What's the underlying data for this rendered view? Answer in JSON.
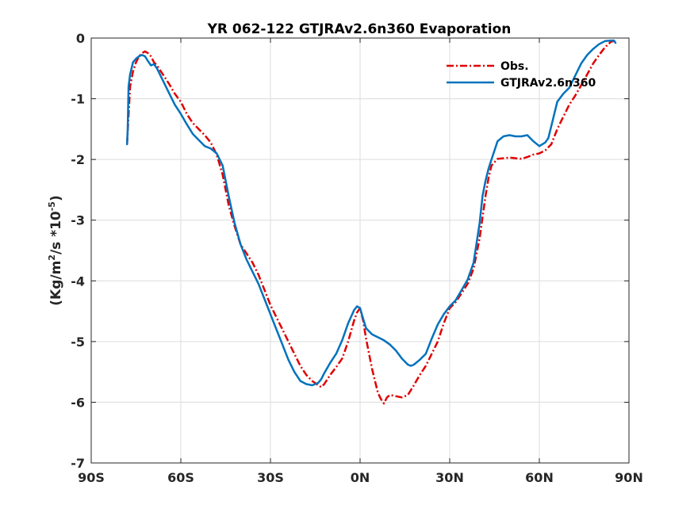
{
  "chart_data": {
    "type": "line",
    "title": "YR 062-122 GTJRAv2.6n360 Evaporation",
    "ylabel": {
      "base": "(Kg/m",
      "sup1": "2",
      "mid": "/s *10",
      "sup2": "-5",
      "end": ")"
    },
    "xlim": [
      -90,
      90
    ],
    "ylim": [
      -7,
      0
    ],
    "xticks": [
      {
        "value": -90,
        "label": "90S"
      },
      {
        "value": -60,
        "label": "60S"
      },
      {
        "value": -30,
        "label": "30S"
      },
      {
        "value": 0,
        "label": "0N"
      },
      {
        "value": 30,
        "label": "30N"
      },
      {
        "value": 60,
        "label": "60N"
      },
      {
        "value": 90,
        "label": "90N"
      }
    ],
    "yticks": [
      {
        "value": 0,
        "label": "0"
      },
      {
        "value": -1,
        "label": "-1"
      },
      {
        "value": -2,
        "label": "-2"
      },
      {
        "value": -3,
        "label": "-3"
      },
      {
        "value": -4,
        "label": "-4"
      },
      {
        "value": -5,
        "label": "-5"
      },
      {
        "value": -6,
        "label": "-6"
      },
      {
        "value": -7,
        "label": "-7"
      }
    ],
    "grid": true,
    "legend_position": "top-right",
    "series": [
      {
        "name": "Obs.",
        "color": "#e00000",
        "dash": "dash-dot",
        "x": [
          -78,
          -77,
          -76,
          -75,
          -74,
          -73,
          -72,
          -71,
          -70,
          -69,
          -68,
          -66,
          -64,
          -62,
          -60,
          -58,
          -56,
          -54,
          -52,
          -50,
          -48,
          -46,
          -44,
          -42,
          -40,
          -38,
          -36,
          -34,
          -32,
          -30,
          -28,
          -26,
          -24,
          -22,
          -20,
          -18,
          -16,
          -14,
          -13,
          -12,
          -10,
          -8,
          -6,
          -4,
          -2,
          -1,
          0,
          1,
          2,
          3,
          4,
          5,
          6,
          7,
          8,
          9,
          10,
          12,
          14,
          16,
          18,
          20,
          22,
          24,
          26,
          28,
          30,
          32,
          34,
          36,
          38,
          40,
          41,
          42,
          43,
          44,
          46,
          48,
          50,
          52,
          54,
          56,
          58,
          60,
          62,
          64,
          66,
          68,
          70,
          72,
          74,
          76,
          78,
          80,
          82,
          84,
          85
        ],
        "y": [
          -1.75,
          -0.8,
          -0.55,
          -0.4,
          -0.3,
          -0.25,
          -0.22,
          -0.25,
          -0.3,
          -0.4,
          -0.45,
          -0.6,
          -0.75,
          -0.92,
          -1.05,
          -1.25,
          -1.4,
          -1.5,
          -1.6,
          -1.72,
          -1.92,
          -2.25,
          -2.75,
          -3.1,
          -3.4,
          -3.55,
          -3.7,
          -3.9,
          -4.15,
          -4.4,
          -4.6,
          -4.8,
          -5.0,
          -5.2,
          -5.4,
          -5.55,
          -5.65,
          -5.72,
          -5.75,
          -5.7,
          -5.55,
          -5.42,
          -5.28,
          -5.0,
          -4.65,
          -4.52,
          -4.45,
          -4.65,
          -4.95,
          -5.2,
          -5.45,
          -5.65,
          -5.85,
          -5.95,
          -6.02,
          -5.92,
          -5.88,
          -5.9,
          -5.92,
          -5.88,
          -5.72,
          -5.55,
          -5.4,
          -5.2,
          -5.0,
          -4.7,
          -4.45,
          -4.35,
          -4.2,
          -4.05,
          -3.8,
          -3.3,
          -2.95,
          -2.6,
          -2.3,
          -2.1,
          -1.99,
          -1.98,
          -1.97,
          -1.98,
          -1.99,
          -1.96,
          -1.92,
          -1.9,
          -1.85,
          -1.75,
          -1.5,
          -1.3,
          -1.1,
          -0.95,
          -0.78,
          -0.6,
          -0.42,
          -0.28,
          -0.15,
          -0.06,
          -0.05
        ]
      },
      {
        "name": "GTJRAv2.6n360",
        "color": "#0072bd",
        "dash": "solid",
        "x": [
          -78,
          -77.8,
          -77.5,
          -77,
          -76,
          -75,
          -74,
          -73,
          -72,
          -71,
          -70,
          -69,
          -68,
          -66,
          -64,
          -62,
          -60,
          -58,
          -56,
          -54,
          -52,
          -50,
          -48,
          -46,
          -44,
          -42,
          -40,
          -38,
          -36,
          -34,
          -32,
          -30,
          -28,
          -26,
          -24,
          -22,
          -20,
          -18,
          -16,
          -14,
          -13,
          -12,
          -10,
          -8,
          -6,
          -4,
          -2,
          -1,
          0,
          1,
          2,
          4,
          6,
          8,
          10,
          12,
          14,
          16,
          17,
          18,
          20,
          22,
          24,
          26,
          28,
          30,
          32,
          34,
          36,
          38,
          40,
          41,
          42,
          43,
          44,
          46,
          48,
          50,
          52,
          54,
          56,
          58,
          60,
          62,
          63,
          64,
          66,
          68,
          70,
          72,
          74,
          76,
          78,
          80,
          82,
          84,
          85,
          85.5
        ],
        "y": [
          -1.75,
          -1.5,
          -0.8,
          -0.6,
          -0.4,
          -0.34,
          -0.3,
          -0.28,
          -0.3,
          -0.38,
          -0.45,
          -0.43,
          -0.5,
          -0.7,
          -0.9,
          -1.1,
          -1.25,
          -1.42,
          -1.58,
          -1.68,
          -1.78,
          -1.82,
          -1.9,
          -2.1,
          -2.6,
          -3.05,
          -3.4,
          -3.65,
          -3.85,
          -4.05,
          -4.3,
          -4.55,
          -4.8,
          -5.05,
          -5.3,
          -5.5,
          -5.65,
          -5.7,
          -5.72,
          -5.68,
          -5.62,
          -5.52,
          -5.35,
          -5.2,
          -4.98,
          -4.7,
          -4.48,
          -4.42,
          -4.45,
          -4.62,
          -4.78,
          -4.88,
          -4.93,
          -4.98,
          -5.05,
          -5.15,
          -5.28,
          -5.38,
          -5.4,
          -5.38,
          -5.3,
          -5.2,
          -4.95,
          -4.72,
          -4.55,
          -4.42,
          -4.32,
          -4.15,
          -3.98,
          -3.7,
          -3.05,
          -2.6,
          -2.35,
          -2.15,
          -2.0,
          -1.7,
          -1.62,
          -1.6,
          -1.62,
          -1.62,
          -1.6,
          -1.7,
          -1.78,
          -1.72,
          -1.65,
          -1.45,
          -1.05,
          -0.92,
          -0.82,
          -0.62,
          -0.42,
          -0.28,
          -0.18,
          -0.1,
          -0.05,
          -0.04,
          -0.04,
          -0.08
        ]
      }
    ]
  }
}
